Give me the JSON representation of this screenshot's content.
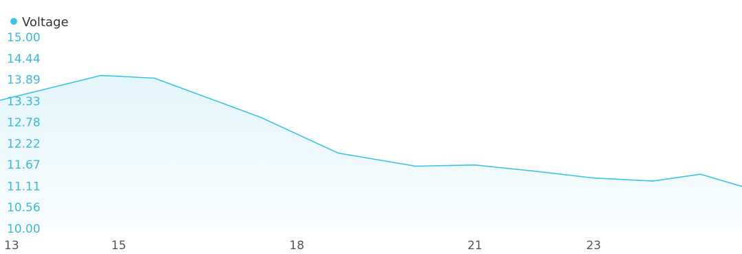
{
  "colors": {
    "accent": "#3cc3e3",
    "tick_text": "#3fb8d6",
    "x_tick_text": "#555555",
    "legend_text": "#333333",
    "fill_top": "#e1f5fb",
    "fill_bottom": "#f7fcfe"
  },
  "chart_data": {
    "type": "area",
    "title": "",
    "xlabel": "",
    "ylabel": "",
    "legend": {
      "position": "top-left",
      "entries": [
        "Voltage"
      ]
    },
    "grid": false,
    "ylim": [
      10.0,
      15.0
    ],
    "y_ticks": [
      "15.00",
      "14.44",
      "13.89",
      "13.33",
      "12.78",
      "12.22",
      "11.67",
      "11.11",
      "10.56",
      "10.00"
    ],
    "xlim": [
      13,
      25.5
    ],
    "x_ticks": [
      "13",
      "15",
      "18",
      "21",
      "23"
    ],
    "series": [
      {
        "name": "Voltage",
        "x": [
          13,
          14.7,
          15.6,
          17.4,
          18.7,
          20.0,
          21.0,
          22.0,
          23.0,
          24.0,
          24.8,
          25.5
        ],
        "y": [
          13.35,
          14.0,
          13.93,
          12.9,
          11.97,
          11.63,
          11.66,
          11.5,
          11.32,
          11.24,
          11.42,
          11.1
        ]
      }
    ]
  }
}
